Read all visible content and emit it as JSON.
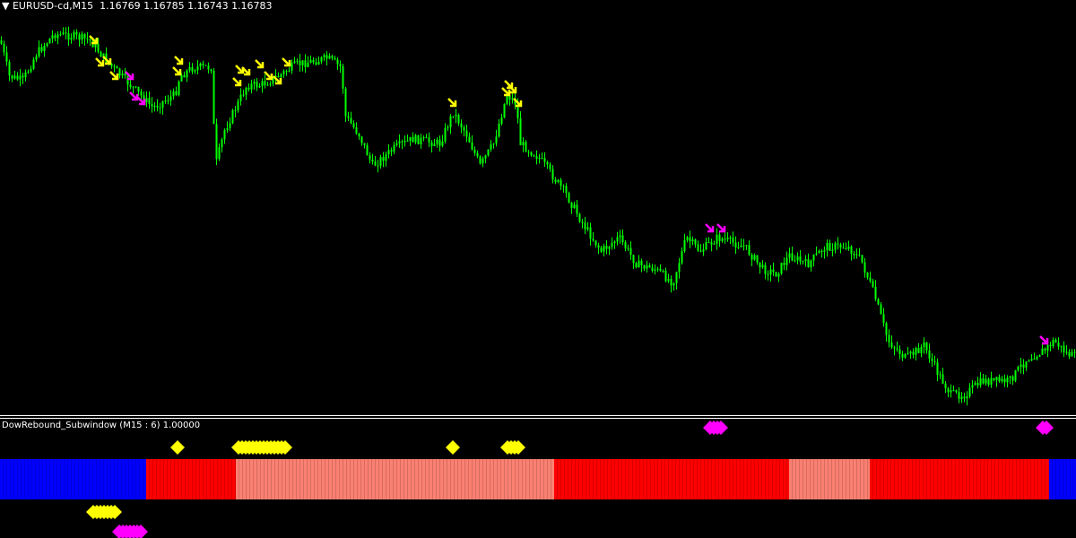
{
  "chart_header": {
    "symbol": "EURUSD-cd,M15",
    "ohlc": "1.16769 1.16785 1.16743 1.16783"
  },
  "subwindow": {
    "label": "DowRebound_Subwindow (M15 : 6) 1.00000"
  },
  "colors": {
    "background": "#000000",
    "candle": "#00ff00",
    "buy_arrow": "#ffff00",
    "sell_arrow": "#ff00ff",
    "blue": "#0000ff",
    "red": "#ff0000",
    "salmon": "#fa8072"
  },
  "histogram_segments": [
    "blue",
    "red",
    "salmon",
    "red",
    "salmon",
    "red",
    "blue"
  ]
}
